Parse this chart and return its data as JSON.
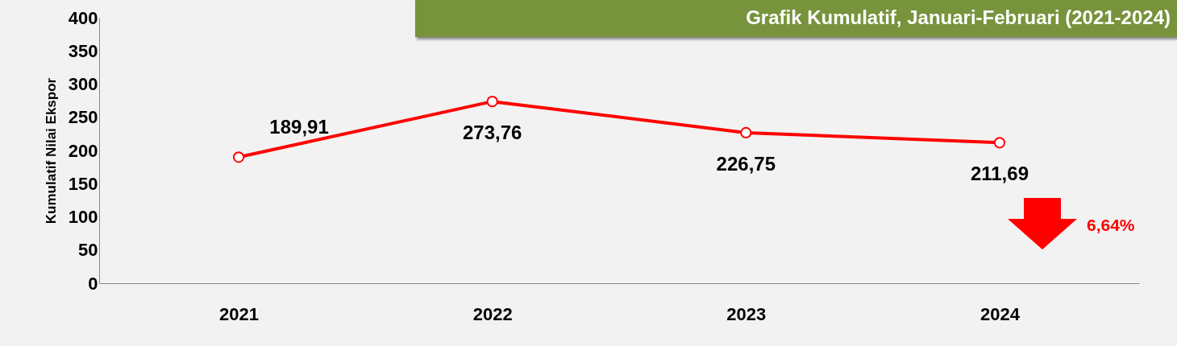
{
  "chart_data": {
    "type": "line",
    "title": "Grafik Kumulatif,  Januari-Februari (2021-2024)",
    "ylabel": "Kumulatif Nilai Ekspor",
    "categories": [
      "2021",
      "2022",
      "2023",
      "2024"
    ],
    "series": [
      {
        "color": "#ff0000",
        "values": [
          189.91,
          273.76,
          226.75,
          211.69
        ]
      }
    ],
    "value_labels": [
      "189,91",
      "273,76",
      "226,75",
      "211,69"
    ],
    "ylim": [
      0,
      400
    ],
    "yticks": [
      0,
      50,
      100,
      150,
      200,
      250,
      300,
      350,
      400
    ],
    "grid": false,
    "marker": "circle",
    "line_style": "solid",
    "annotations": [
      "6,64%"
    ]
  }
}
